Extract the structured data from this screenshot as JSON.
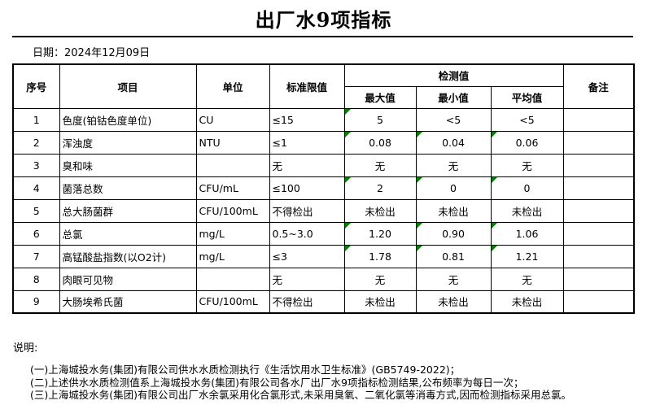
{
  "title": "出厂水9项指标",
  "date_label": "日期：2024年12月09日",
  "table": {
    "headers": {
      "index": "序号",
      "item": "项目",
      "unit": "单位",
      "limit": "标准限值",
      "detection_group": "检测值",
      "max": "最大值",
      "min": "最小值",
      "avg": "平均值",
      "remark": "备注"
    },
    "rows": [
      {
        "index": "1",
        "item": "色度(铂钴色度单位)",
        "unit": "CU",
        "limit": "≤15",
        "max": "5",
        "min": "<5",
        "avg": "<5",
        "remark": "",
        "triangles": [
          "max"
        ]
      },
      {
        "index": "2",
        "item": "浑浊度",
        "unit": "NTU",
        "limit": "≤1",
        "max": "0.08",
        "min": "0.04",
        "avg": "0.06",
        "remark": "",
        "triangles": [
          "max",
          "min",
          "avg"
        ]
      },
      {
        "index": "3",
        "item": "臭和味",
        "unit": "",
        "limit": "无",
        "max": "无",
        "min": "无",
        "avg": "无",
        "remark": "",
        "triangles": []
      },
      {
        "index": "4",
        "item": "菌落总数",
        "unit": "CFU/mL",
        "limit": "≤100",
        "max": "2",
        "min": "0",
        "avg": "0",
        "remark": "",
        "triangles": [
          "max",
          "min",
          "avg"
        ]
      },
      {
        "index": "5",
        "item": "总大肠菌群",
        "unit": "CFU/100mL",
        "limit": "不得检出",
        "max": "未检出",
        "min": "未检出",
        "avg": "未检出",
        "remark": "",
        "triangles": []
      },
      {
        "index": "6",
        "item": "总氯",
        "unit": "mg/L",
        "limit": "0.5~3.0",
        "max": "1.20",
        "min": "0.90",
        "avg": "1.06",
        "remark": "",
        "triangles": [
          "max",
          "min",
          "avg"
        ]
      },
      {
        "index": "7",
        "item": "高锰酸盐指数(以O2计)",
        "unit": "mg/L",
        "limit": "≤3",
        "max": "1.78",
        "min": "0.81",
        "avg": "1.21",
        "remark": "",
        "triangles": [
          "max",
          "min",
          "avg"
        ]
      },
      {
        "index": "8",
        "item": "肉眼可见物",
        "unit": "",
        "limit": "无",
        "max": "无",
        "min": "无",
        "avg": "无",
        "remark": "",
        "triangles": []
      },
      {
        "index": "9",
        "item": "大肠埃希氏菌",
        "unit": "CFU/100mL",
        "limit": "不得检出",
        "max": "未检出",
        "min": "未检出",
        "avg": "未检出",
        "remark": "",
        "triangles": []
      }
    ]
  },
  "notes": {
    "label": "说明:",
    "items": [
      "(一)上海城投水务(集团)有限公司供水水质检测执行《生活饮用水卫生标准》(GB5749-2022)；",
      "(二)上述供水水质检测值系上海城投水务(集团)有限公司各水厂出厂水9项指标检测结果,公布频率为每日一次；",
      "(三)上海城投水务(集团)有限公司出厂水余氯采用化合氯形式,未采用臭氧、二氧化氯等消毒方式,因而检测指标采用总氯。"
    ]
  },
  "colors": {
    "triangle_green": "#008000",
    "border": "#000000",
    "text": "#000000",
    "background": "#ffffff"
  }
}
